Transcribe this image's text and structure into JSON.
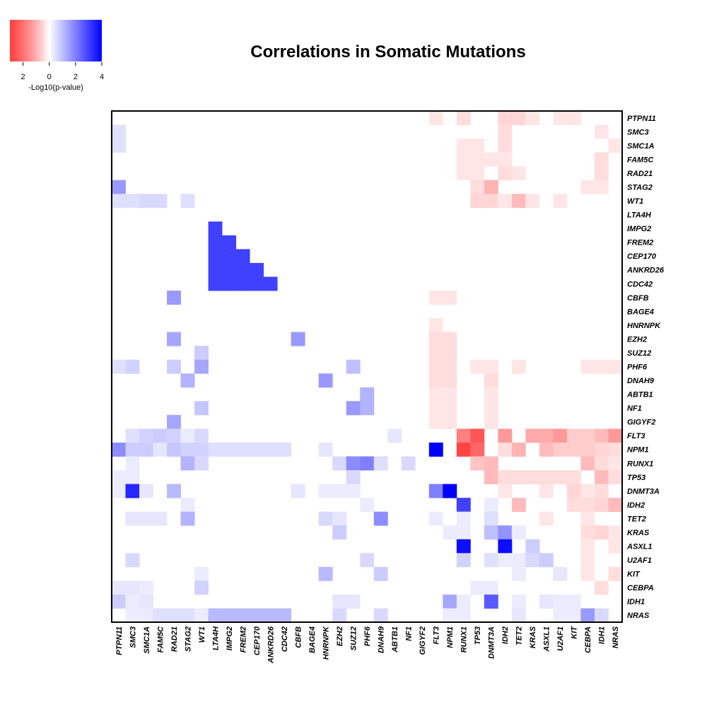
{
  "chart_data": {
    "type": "heatmap",
    "title": "Correlations in Somatic Mutations",
    "legend": {
      "label": "-Log10(p-value)",
      "ticks": [
        "2",
        "0",
        "2",
        "4"
      ],
      "tick_values": [
        -2,
        0,
        2,
        4
      ],
      "range": [
        -3,
        4
      ],
      "negative_color": "#ff0000",
      "positive_color": "#0000ff",
      "placement": "top-left"
    },
    "genes": [
      "PTPN11",
      "SMC3",
      "SMC1A",
      "FAM5C",
      "RAD21",
      "STAG2",
      "WT1",
      "LTA4H",
      "IMPG2",
      "FREM2",
      "CEP170",
      "ANKRD26",
      "CDC42",
      "CBFB",
      "BAGE4",
      "HNRNPK",
      "EZH2",
      "SUZ12",
      "PHF6",
      "DNAH9",
      "ABTB1",
      "NF1",
      "GIGYF2",
      "FLT3",
      "NPM1",
      "RUNX1",
      "TP53",
      "DNMT3A",
      "IDH2",
      "TET2",
      "KRAS",
      "ASXL1",
      "U2AF1",
      "KIT",
      "CEBPA",
      "IDH1",
      "NRAS"
    ],
    "cells": [
      [
        "PTPN11",
        "FLT3",
        -0.3
      ],
      [
        "PTPN11",
        "RUNX1",
        -0.4
      ],
      [
        "PTPN11",
        "IDH2",
        -0.5
      ],
      [
        "PTPN11",
        "TET2",
        -0.5
      ],
      [
        "PTPN11",
        "KRAS",
        -0.3
      ],
      [
        "PTPN11",
        "U2AF1",
        -0.3
      ],
      [
        "PTPN11",
        "KIT",
        -0.3
      ],
      [
        "SMC3",
        "PTPN11",
        0.5
      ],
      [
        "SMC3",
        "IDH2",
        -0.4
      ],
      [
        "SMC3",
        "IDH1",
        -0.3
      ],
      [
        "SMC1A",
        "PTPN11",
        0.5
      ],
      [
        "SMC1A",
        "RUNX1",
        -0.3
      ],
      [
        "SMC1A",
        "TP53",
        -0.3
      ],
      [
        "SMC1A",
        "IDH2",
        -0.4
      ],
      [
        "SMC1A",
        "NRAS",
        -0.3
      ],
      [
        "FAM5C",
        "RUNX1",
        -0.3
      ],
      [
        "FAM5C",
        "TP53",
        -0.3
      ],
      [
        "FAM5C",
        "DNMT3A",
        -0.3
      ],
      [
        "FAM5C",
        "IDH2",
        -0.3
      ],
      [
        "FAM5C",
        "IDH1",
        -0.4
      ],
      [
        "RAD21",
        "RUNX1",
        -0.3
      ],
      [
        "RAD21",
        "TP53",
        -0.3
      ],
      [
        "RAD21",
        "IDH2",
        -0.4
      ],
      [
        "RAD21",
        "TET2",
        -0.3
      ],
      [
        "RAD21",
        "IDH1",
        -0.4
      ],
      [
        "STAG2",
        "PTPN11",
        1.6
      ],
      [
        "STAG2",
        "TP53",
        -0.4
      ],
      [
        "STAG2",
        "DNMT3A",
        -0.9
      ],
      [
        "STAG2",
        "CEBPA",
        -0.3
      ],
      [
        "STAG2",
        "IDH1",
        -0.3
      ],
      [
        "WT1",
        "PTPN11",
        0.5
      ],
      [
        "WT1",
        "SMC3",
        0.5
      ],
      [
        "WT1",
        "SMC1A",
        0.6
      ],
      [
        "WT1",
        "FAM5C",
        0.6
      ],
      [
        "WT1",
        "STAG2",
        0.5
      ],
      [
        "WT1",
        "TP53",
        -0.5
      ],
      [
        "WT1",
        "DNMT3A",
        -0.5
      ],
      [
        "WT1",
        "IDH2",
        -0.3
      ],
      [
        "WT1",
        "TET2",
        -0.8
      ],
      [
        "WT1",
        "KRAS",
        -0.3
      ],
      [
        "WT1",
        "U2AF1",
        -0.3
      ],
      [
        "IMPG2",
        "LTA4H",
        3.0
      ],
      [
        "FREM2",
        "LTA4H",
        3.0
      ],
      [
        "FREM2",
        "IMPG2",
        3.0
      ],
      [
        "CEP170",
        "LTA4H",
        3.0
      ],
      [
        "CEP170",
        "IMPG2",
        3.0
      ],
      [
        "CEP170",
        "FREM2",
        3.0
      ],
      [
        "ANKRD26",
        "LTA4H",
        3.0
      ],
      [
        "ANKRD26",
        "IMPG2",
        3.0
      ],
      [
        "ANKRD26",
        "FREM2",
        3.0
      ],
      [
        "ANKRD26",
        "CEP170",
        3.0
      ],
      [
        "CDC42",
        "LTA4H",
        3.0
      ],
      [
        "CDC42",
        "IMPG2",
        3.0
      ],
      [
        "CDC42",
        "FREM2",
        3.0
      ],
      [
        "CDC42",
        "CEP170",
        3.0
      ],
      [
        "CDC42",
        "ANKRD26",
        3.0
      ],
      [
        "CBFB",
        "RAD21",
        1.6
      ],
      [
        "CBFB",
        "FLT3",
        -0.3
      ],
      [
        "CBFB",
        "NPM1",
        -0.3
      ],
      [
        "HNRNPK",
        "FLT3",
        -0.3
      ],
      [
        "EZH2",
        "RAD21",
        1.4
      ],
      [
        "EZH2",
        "CBFB",
        1.6
      ],
      [
        "EZH2",
        "FLT3",
        -0.4
      ],
      [
        "EZH2",
        "NPM1",
        -0.4
      ],
      [
        "SUZ12",
        "WT1",
        0.8
      ],
      [
        "SUZ12",
        "FLT3",
        -0.4
      ],
      [
        "SUZ12",
        "NPM1",
        -0.4
      ],
      [
        "PHF6",
        "PTPN11",
        0.5
      ],
      [
        "PHF6",
        "SMC3",
        0.7
      ],
      [
        "PHF6",
        "RAD21",
        0.8
      ],
      [
        "PHF6",
        "WT1",
        1.4
      ],
      [
        "PHF6",
        "SUZ12",
        1.0
      ],
      [
        "PHF6",
        "FLT3",
        -0.4
      ],
      [
        "PHF6",
        "NPM1",
        -0.4
      ],
      [
        "PHF6",
        "TP53",
        -0.3
      ],
      [
        "PHF6",
        "DNMT3A",
        -0.3
      ],
      [
        "PHF6",
        "TET2",
        -0.3
      ],
      [
        "PHF6",
        "CEBPA",
        -0.3
      ],
      [
        "PHF6",
        "IDH1",
        -0.3
      ],
      [
        "PHF6",
        "NRAS",
        -0.3
      ],
      [
        "DNAH9",
        "STAG2",
        1.2
      ],
      [
        "DNAH9",
        "HNRNPK",
        1.6
      ],
      [
        "DNAH9",
        "FLT3",
        -0.4
      ],
      [
        "DNAH9",
        "NPM1",
        -0.4
      ],
      [
        "DNAH9",
        "DNMT3A",
        -0.4
      ],
      [
        "ABTB1",
        "PHF6",
        1.2
      ],
      [
        "ABTB1",
        "FLT3",
        -0.3
      ],
      [
        "ABTB1",
        "NPM1",
        -0.3
      ],
      [
        "ABTB1",
        "DNMT3A",
        -0.3
      ],
      [
        "NF1",
        "WT1",
        0.9
      ],
      [
        "NF1",
        "SUZ12",
        1.6
      ],
      [
        "NF1",
        "PHF6",
        1.2
      ],
      [
        "NF1",
        "FLT3",
        -0.3
      ],
      [
        "NF1",
        "NPM1",
        -0.3
      ],
      [
        "NF1",
        "DNMT3A",
        -0.3
      ],
      [
        "GIGYF2",
        "RAD21",
        1.4
      ],
      [
        "GIGYF2",
        "FLT3",
        -0.3
      ],
      [
        "GIGYF2",
        "NPM1",
        -0.3
      ],
      [
        "GIGYF2",
        "DNMT3A",
        -0.3
      ],
      [
        "FLT3",
        "SMC3",
        0.5
      ],
      [
        "FLT3",
        "SMC1A",
        0.7
      ],
      [
        "FLT3",
        "FAM5C",
        0.8
      ],
      [
        "FLT3",
        "RAD21",
        0.7
      ],
      [
        "FLT3",
        "STAG2",
        0.3
      ],
      [
        "FLT3",
        "WT1",
        0.6
      ],
      [
        "FLT3",
        "ABTB1",
        0.4
      ],
      [
        "FLT3",
        "RUNX1",
        -1.5
      ],
      [
        "FLT3",
        "TP53",
        -2.0
      ],
      [
        "FLT3",
        "IDH2",
        -1.2
      ],
      [
        "FLT3",
        "KRAS",
        -1.0
      ],
      [
        "FLT3",
        "ASXL1",
        -1.0
      ],
      [
        "FLT3",
        "U2AF1",
        -1.2
      ],
      [
        "FLT3",
        "KIT",
        -0.6
      ],
      [
        "FLT3",
        "CEBPA",
        -0.6
      ],
      [
        "FLT3",
        "IDH1",
        -0.8
      ],
      [
        "FLT3",
        "NRAS",
        -1.2
      ],
      [
        "NPM1",
        "PTPN11",
        1.8
      ],
      [
        "NPM1",
        "SMC3",
        0.8
      ],
      [
        "NPM1",
        "SMC1A",
        0.8
      ],
      [
        "NPM1",
        "FAM5C",
        0.4
      ],
      [
        "NPM1",
        "RAD21",
        0.9
      ],
      [
        "NPM1",
        "STAG2",
        0.7
      ],
      [
        "NPM1",
        "WT1",
        0.7
      ],
      [
        "NPM1",
        "LTA4H",
        0.5
      ],
      [
        "NPM1",
        "IMPG2",
        0.5
      ],
      [
        "NPM1",
        "FREM2",
        0.5
      ],
      [
        "NPM1",
        "CEP170",
        0.5
      ],
      [
        "NPM1",
        "ANKRD26",
        0.5
      ],
      [
        "NPM1",
        "CDC42",
        0.5
      ],
      [
        "NPM1",
        "HNRNPK",
        0.4
      ],
      [
        "NPM1",
        "FLT3",
        4.0
      ],
      [
        "NPM1",
        "RUNX1",
        -2.2
      ],
      [
        "NPM1",
        "TP53",
        -1.8
      ],
      [
        "NPM1",
        "IDH2",
        -0.4
      ],
      [
        "NPM1",
        "TET2",
        -0.9
      ],
      [
        "NPM1",
        "ASXL1",
        -0.8
      ],
      [
        "NPM1",
        "U2AF1",
        -0.6
      ],
      [
        "NPM1",
        "KIT",
        -0.6
      ],
      [
        "NPM1",
        "CEBPA",
        -0.6
      ],
      [
        "NPM1",
        "IDH1",
        -0.5
      ],
      [
        "NPM1",
        "NRAS",
        -0.4
      ],
      [
        "RUNX1",
        "SMC3",
        0.3
      ],
      [
        "RUNX1",
        "STAG2",
        1.2
      ],
      [
        "RUNX1",
        "WT1",
        0.6
      ],
      [
        "RUNX1",
        "EZH2",
        0.6
      ],
      [
        "RUNX1",
        "SUZ12",
        1.8
      ],
      [
        "RUNX1",
        "PHF6",
        2.0
      ],
      [
        "RUNX1",
        "DNAH9",
        0.5
      ],
      [
        "RUNX1",
        "NF1",
        0.6
      ],
      [
        "RUNX1",
        "TP53",
        -0.7
      ],
      [
        "RUNX1",
        "DNMT3A",
        -0.8
      ],
      [
        "RUNX1",
        "CEBPA",
        -0.8
      ],
      [
        "RUNX1",
        "IDH1",
        -0.4
      ],
      [
        "RUNX1",
        "NRAS",
        -0.3
      ],
      [
        "TP53",
        "PTPN11",
        0.3
      ],
      [
        "TP53",
        "SMC3",
        0.3
      ],
      [
        "TP53",
        "SUZ12",
        0.6
      ],
      [
        "TP53",
        "DNMT3A",
        -0.8
      ],
      [
        "TP53",
        "IDH2",
        -0.4
      ],
      [
        "TP53",
        "TET2",
        -0.4
      ],
      [
        "TP53",
        "KRAS",
        -0.4
      ],
      [
        "TP53",
        "ASXL1",
        -0.4
      ],
      [
        "TP53",
        "U2AF1",
        -0.4
      ],
      [
        "TP53",
        "KIT",
        -0.4
      ],
      [
        "TP53",
        "IDH1",
        -0.8
      ],
      [
        "TP53",
        "NRAS",
        -0.4
      ],
      [
        "DNMT3A",
        "PTPN11",
        0.3
      ],
      [
        "DNMT3A",
        "SMC3",
        3.4
      ],
      [
        "DNMT3A",
        "SMC1A",
        0.4
      ],
      [
        "DNMT3A",
        "RAD21",
        1.1
      ],
      [
        "DNMT3A",
        "CBFB",
        0.4
      ],
      [
        "DNMT3A",
        "HNRNPK",
        0.3
      ],
      [
        "DNMT3A",
        "EZH2",
        0.3
      ],
      [
        "DNMT3A",
        "SUZ12",
        0.3
      ],
      [
        "DNMT3A",
        "FLT3",
        2.0
      ],
      [
        "DNMT3A",
        "NPM1",
        4.0
      ],
      [
        "DNMT3A",
        "IDH2",
        -0.3
      ],
      [
        "DNMT3A",
        "ASXL1",
        -0.3
      ],
      [
        "DNMT3A",
        "KIT",
        -0.5
      ],
      [
        "DNMT3A",
        "CEBPA",
        -0.3
      ],
      [
        "DNMT3A",
        "IDH1",
        -0.4
      ],
      [
        "IDH2",
        "STAG2",
        0.3
      ],
      [
        "IDH2",
        "PHF6",
        0.3
      ],
      [
        "IDH2",
        "RUNX1",
        3.0
      ],
      [
        "IDH2",
        "DNMT3A",
        0.3
      ],
      [
        "IDH2",
        "TET2",
        -0.8
      ],
      [
        "IDH2",
        "KIT",
        -0.4
      ],
      [
        "IDH2",
        "CEBPA",
        -0.4
      ],
      [
        "IDH2",
        "IDH1",
        -0.5
      ],
      [
        "IDH2",
        "NRAS",
        -0.8
      ],
      [
        "TET2",
        "SMC3",
        0.4
      ],
      [
        "TET2",
        "SMC1A",
        0.4
      ],
      [
        "TET2",
        "FAM5C",
        0.4
      ],
      [
        "TET2",
        "STAG2",
        1.2
      ],
      [
        "TET2",
        "HNRNPK",
        0.6
      ],
      [
        "TET2",
        "EZH2",
        0.4
      ],
      [
        "TET2",
        "DNAH9",
        1.8
      ],
      [
        "TET2",
        "FLT3",
        0.3
      ],
      [
        "TET2",
        "RUNX1",
        0.3
      ],
      [
        "TET2",
        "DNMT3A",
        0.5
      ],
      [
        "TET2",
        "ASXL1",
        -0.3
      ],
      [
        "TET2",
        "CEBPA",
        -0.3
      ],
      [
        "KRAS",
        "EZH2",
        0.8
      ],
      [
        "KRAS",
        "NPM1",
        0.3
      ],
      [
        "KRAS",
        "RUNX1",
        0.3
      ],
      [
        "KRAS",
        "DNMT3A",
        1.0
      ],
      [
        "KRAS",
        "IDH2",
        1.7
      ],
      [
        "KRAS",
        "TET2",
        0.3
      ],
      [
        "KRAS",
        "CEBPA",
        -0.4
      ],
      [
        "KRAS",
        "IDH1",
        -0.5
      ],
      [
        "KRAS",
        "NRAS",
        -0.3
      ],
      [
        "ASXL1",
        "RUNX1",
        3.8
      ],
      [
        "ASXL1",
        "IDH2",
        3.8
      ],
      [
        "ASXL1",
        "KRAS",
        0.8
      ],
      [
        "ASXL1",
        "CEBPA",
        -0.3
      ],
      [
        "ASXL1",
        "NRAS",
        -0.3
      ],
      [
        "U2AF1",
        "SMC3",
        0.6
      ],
      [
        "U2AF1",
        "PHF6",
        0.6
      ],
      [
        "U2AF1",
        "RUNX1",
        0.7
      ],
      [
        "U2AF1",
        "DNMT3A",
        0.5
      ],
      [
        "U2AF1",
        "IDH2",
        0.3
      ],
      [
        "U2AF1",
        "TET2",
        0.3
      ],
      [
        "U2AF1",
        "KRAS",
        0.6
      ],
      [
        "U2AF1",
        "ASXL1",
        0.8
      ],
      [
        "U2AF1",
        "CEBPA",
        -0.3
      ],
      [
        "KIT",
        "WT1",
        0.3
      ],
      [
        "KIT",
        "HNRNPK",
        1.1
      ],
      [
        "KIT",
        "DNAH9",
        0.8
      ],
      [
        "KIT",
        "TET2",
        0.3
      ],
      [
        "KIT",
        "U2AF1",
        0.4
      ],
      [
        "KIT",
        "CEBPA",
        -0.3
      ],
      [
        "KIT",
        "NRAS",
        -0.4
      ],
      [
        "CEBPA",
        "PTPN11",
        0.4
      ],
      [
        "CEBPA",
        "SMC3",
        0.4
      ],
      [
        "CEBPA",
        "SMC1A",
        0.3
      ],
      [
        "CEBPA",
        "WT1",
        0.7
      ],
      [
        "CEBPA",
        "TP53",
        0.3
      ],
      [
        "CEBPA",
        "DNMT3A",
        0.3
      ],
      [
        "CEBPA",
        "IDH1",
        -0.4
      ],
      [
        "IDH1",
        "PTPN11",
        0.8
      ],
      [
        "IDH1",
        "SMC3",
        0.3
      ],
      [
        "IDH1",
        "SMC1A",
        0.4
      ],
      [
        "IDH1",
        "EZH2",
        0.4
      ],
      [
        "IDH1",
        "SUZ12",
        0.4
      ],
      [
        "IDH1",
        "NPM1",
        1.4
      ],
      [
        "IDH1",
        "RUNX1",
        0.3
      ],
      [
        "IDH1",
        "DNMT3A",
        2.6
      ],
      [
        "IDH1",
        "TET2",
        0.3
      ],
      [
        "IDH1",
        "ASXL1",
        0.4
      ],
      [
        "IDH1",
        "U2AF1",
        0.3
      ],
      [
        "IDH1",
        "KIT",
        0.3
      ],
      [
        "NRAS",
        "SMC3",
        0.3
      ],
      [
        "NRAS",
        "SMC1A",
        0.3
      ],
      [
        "NRAS",
        "FAM5C",
        0.5
      ],
      [
        "NRAS",
        "RAD21",
        0.5
      ],
      [
        "NRAS",
        "STAG2",
        0.5
      ],
      [
        "NRAS",
        "WT1",
        0.3
      ],
      [
        "NRAS",
        "LTA4H",
        1.1
      ],
      [
        "NRAS",
        "IMPG2",
        1.1
      ],
      [
        "NRAS",
        "FREM2",
        1.1
      ],
      [
        "NRAS",
        "CEP170",
        1.1
      ],
      [
        "NRAS",
        "ANKRD26",
        1.1
      ],
      [
        "NRAS",
        "CDC42",
        1.1
      ],
      [
        "NRAS",
        "EZH2",
        0.6
      ],
      [
        "NRAS",
        "DNAH9",
        0.6
      ],
      [
        "NRAS",
        "NPM1",
        0.3
      ],
      [
        "NRAS",
        "RUNX1",
        0.3
      ],
      [
        "NRAS",
        "TET2",
        0.4
      ],
      [
        "NRAS",
        "U2AF1",
        0.3
      ],
      [
        "NRAS",
        "KIT",
        0.3
      ],
      [
        "NRAS",
        "CEBPA",
        1.6
      ],
      [
        "NRAS",
        "IDH1",
        0.6
      ]
    ]
  }
}
